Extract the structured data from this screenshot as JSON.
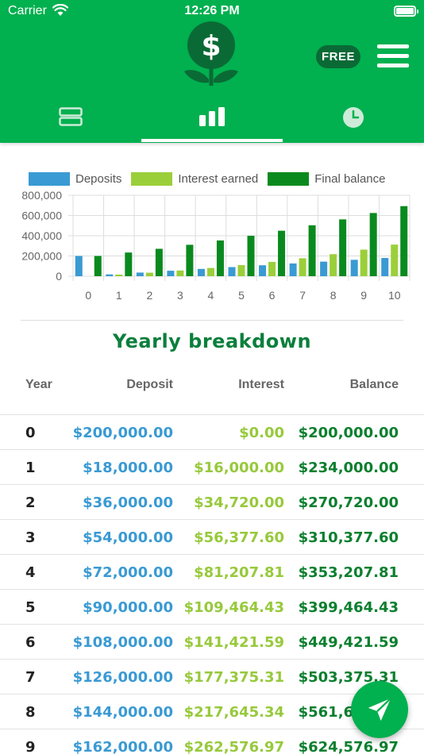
{
  "status_bar": {
    "carrier": "Carrier",
    "time": "12:26 PM"
  },
  "header": {
    "badge": "FREE"
  },
  "tabs": [
    {
      "icon": "list-icon"
    },
    {
      "icon": "bar-chart-icon"
    },
    {
      "icon": "clock-icon"
    }
  ],
  "colors": {
    "deposits": "#3a9ad3",
    "interest": "#9bcf3a",
    "balance": "#0a8a1e",
    "brand": "#01b04f"
  },
  "chart_data": {
    "type": "bar",
    "categories": [
      "0",
      "1",
      "2",
      "3",
      "4",
      "5",
      "6",
      "7",
      "8",
      "9",
      "10"
    ],
    "series": [
      {
        "name": "Deposits",
        "values": [
          200000,
          18000,
          36000,
          54000,
          72000,
          90000,
          108000,
          126000,
          144000,
          162000,
          180000
        ]
      },
      {
        "name": "Interest earned",
        "values": [
          0,
          16000,
          34720,
          56377.6,
          81207.81,
          109464.43,
          141421.59,
          177375.31,
          217645.34,
          262576.97,
          312548.07
        ]
      },
      {
        "name": "Final balance",
        "values": [
          200000,
          234000,
          270720,
          310377.6,
          353207.81,
          399464.43,
          449421.59,
          503375.31,
          561645.34,
          624576.97,
          692548.07
        ]
      }
    ],
    "yticks": [
      "800,000",
      "600,000",
      "400,000",
      "200,000",
      "0"
    ],
    "ylim": [
      0,
      800000
    ],
    "legend": "top",
    "grid": true
  },
  "breakdown": {
    "title": "Yearly breakdown",
    "headers": {
      "year": "Year",
      "deposit": "Deposit",
      "interest": "Interest",
      "balance": "Balance"
    },
    "rows": [
      {
        "year": "0",
        "deposit": "$200,000.00",
        "interest": "$0.00",
        "balance": "$200,000.00"
      },
      {
        "year": "1",
        "deposit": "$18,000.00",
        "interest": "$16,000.00",
        "balance": "$234,000.00"
      },
      {
        "year": "2",
        "deposit": "$36,000.00",
        "interest": "$34,720.00",
        "balance": "$270,720.00"
      },
      {
        "year": "3",
        "deposit": "$54,000.00",
        "interest": "$56,377.60",
        "balance": "$310,377.60"
      },
      {
        "year": "4",
        "deposit": "$72,000.00",
        "interest": "$81,207.81",
        "balance": "$353,207.81"
      },
      {
        "year": "5",
        "deposit": "$90,000.00",
        "interest": "$109,464.43",
        "balance": "$399,464.43"
      },
      {
        "year": "6",
        "deposit": "$108,000.00",
        "interest": "$141,421.59",
        "balance": "$449,421.59"
      },
      {
        "year": "7",
        "deposit": "$126,000.00",
        "interest": "$177,375.31",
        "balance": "$503,375.31"
      },
      {
        "year": "8",
        "deposit": "$144,000.00",
        "interest": "$217,645.34",
        "balance": "$561,645.34"
      },
      {
        "year": "9",
        "deposit": "$162,000.00",
        "interest": "$262,576.97",
        "balance": "$624,576.97"
      }
    ]
  },
  "fab": {
    "icon": "send-icon"
  }
}
